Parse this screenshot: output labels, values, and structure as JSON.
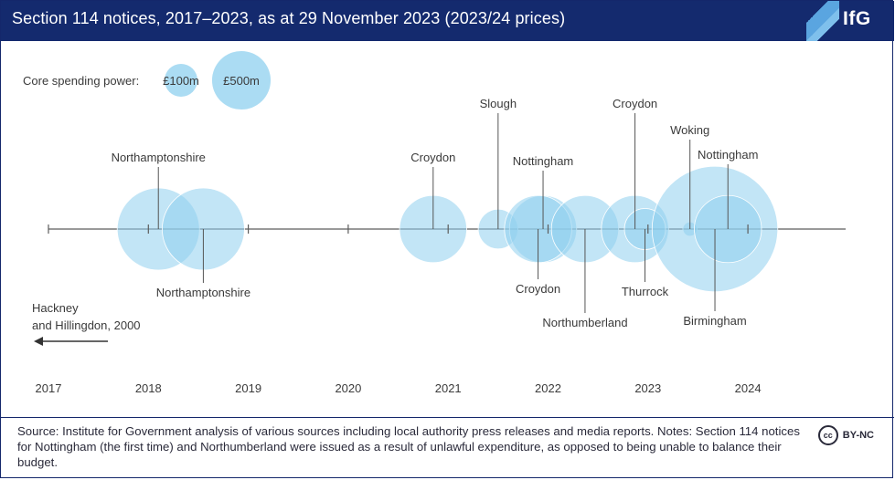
{
  "header": {
    "title": "Section 114 notices, 2017–2023, as at 29 November 2023 (2023/24 prices)",
    "logo": "IfG"
  },
  "legend": {
    "label": "Core spending power:",
    "small": "£100m",
    "large": "£500m"
  },
  "colors": {
    "bubble_fill": "#8fd0ef",
    "bubble_stroke": "#ffffff",
    "axis": "#5c5c5c",
    "header_bg": "#142a6e"
  },
  "annotation": {
    "line1": "Hackney",
    "line2": "and Hillingdon, 2000"
  },
  "chart_data": {
    "type": "scatter",
    "x_axis": {
      "min": 2017,
      "max": 2025,
      "ticks": [
        2017,
        2018,
        2019,
        2020,
        2021,
        2022,
        2023,
        2024
      ],
      "tick_labels": [
        "2017",
        "2018",
        "2019",
        "2020",
        "2021",
        "2022",
        "2023",
        "2024"
      ]
    },
    "size_reference": [
      {
        "label": "£100m",
        "value": 100
      },
      {
        "label": "£500m",
        "value": 500
      }
    ],
    "points": [
      {
        "name": "Northamptonshire",
        "x": 2018.1,
        "value": 600,
        "label_pos": "above"
      },
      {
        "name": "Northamptonshire",
        "x": 2018.55,
        "value": 600,
        "label_pos": "below"
      },
      {
        "name": "Croydon",
        "x": 2020.85,
        "value": 400,
        "label_pos": "above"
      },
      {
        "name": "Slough",
        "x": 2021.5,
        "value": 140,
        "label_pos": "above"
      },
      {
        "name": "Nottingham",
        "x": 2021.95,
        "value": 400,
        "label_pos": "above"
      },
      {
        "name": "Croydon",
        "x": 2021.9,
        "value": 400,
        "label_pos": "below"
      },
      {
        "name": "Northumberland",
        "x": 2022.37,
        "value": 400,
        "label_pos": "below"
      },
      {
        "name": "Croydon",
        "x": 2022.87,
        "value": 400,
        "label_pos": "above"
      },
      {
        "name": "Thurrock",
        "x": 2022.97,
        "value": 150,
        "label_pos": "below"
      },
      {
        "name": "Woking",
        "x": 2023.42,
        "value": 18,
        "label_pos": "above"
      },
      {
        "name": "Birmingham",
        "x": 2023.67,
        "value": 1400,
        "label_pos": "below"
      },
      {
        "name": "Nottingham",
        "x": 2023.8,
        "value": 400,
        "label_pos": "above"
      }
    ]
  },
  "footer": {
    "source": "Source: Institute for Government analysis of various sources including local authority press releases and media reports. Notes: Section 114 notices for Nottingham (the first time) and Northumberland were issued as a result of unlawful expenditure, as opposed to being unable to balance their budget.",
    "license_badge": "cc",
    "license": "BY-NC"
  }
}
